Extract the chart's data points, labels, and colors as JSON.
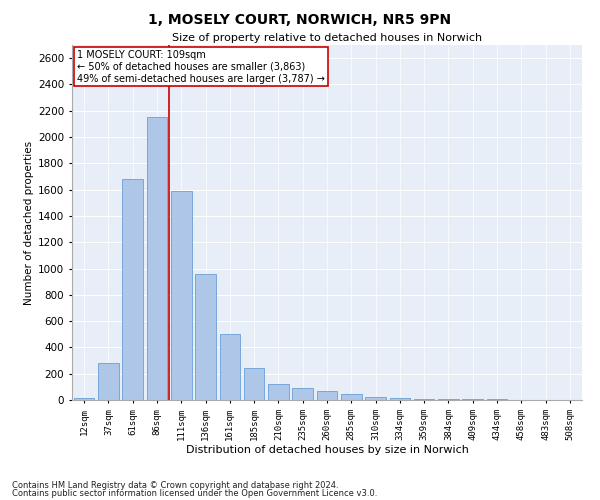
{
  "title": "1, MOSELY COURT, NORWICH, NR5 9PN",
  "subtitle": "Size of property relative to detached houses in Norwich",
  "xlabel": "Distribution of detached houses by size in Norwich",
  "ylabel": "Number of detached properties",
  "property_label": "1 MOSELY COURT: 109sqm",
  "annotation_line1": "← 50% of detached houses are smaller (3,863)",
  "annotation_line2": "49% of semi-detached houses are larger (3,787) →",
  "footnote1": "Contains HM Land Registry data © Crown copyright and database right 2024.",
  "footnote2": "Contains public sector information licensed under the Open Government Licence v3.0.",
  "bar_color": "#aec6e8",
  "bar_edge_color": "#6a9fd8",
  "vline_color": "#cc0000",
  "annotation_box_color": "#cc0000",
  "background_color": "#e8eef8",
  "fig_background": "#ffffff",
  "categories": [
    "12sqm",
    "37sqm",
    "61sqm",
    "86sqm",
    "111sqm",
    "136sqm",
    "161sqm",
    "185sqm",
    "210sqm",
    "235sqm",
    "260sqm",
    "285sqm",
    "310sqm",
    "334sqm",
    "359sqm",
    "384sqm",
    "409sqm",
    "434sqm",
    "458sqm",
    "483sqm",
    "508sqm"
  ],
  "values": [
    15,
    280,
    1680,
    2150,
    1590,
    960,
    500,
    240,
    120,
    90,
    65,
    42,
    25,
    15,
    10,
    8,
    6,
    4,
    3,
    2,
    1
  ],
  "ylim": [
    0,
    2700
  ],
  "yticks": [
    0,
    200,
    400,
    600,
    800,
    1000,
    1200,
    1400,
    1600,
    1800,
    2000,
    2200,
    2400,
    2600
  ],
  "vline_x": 3.5
}
